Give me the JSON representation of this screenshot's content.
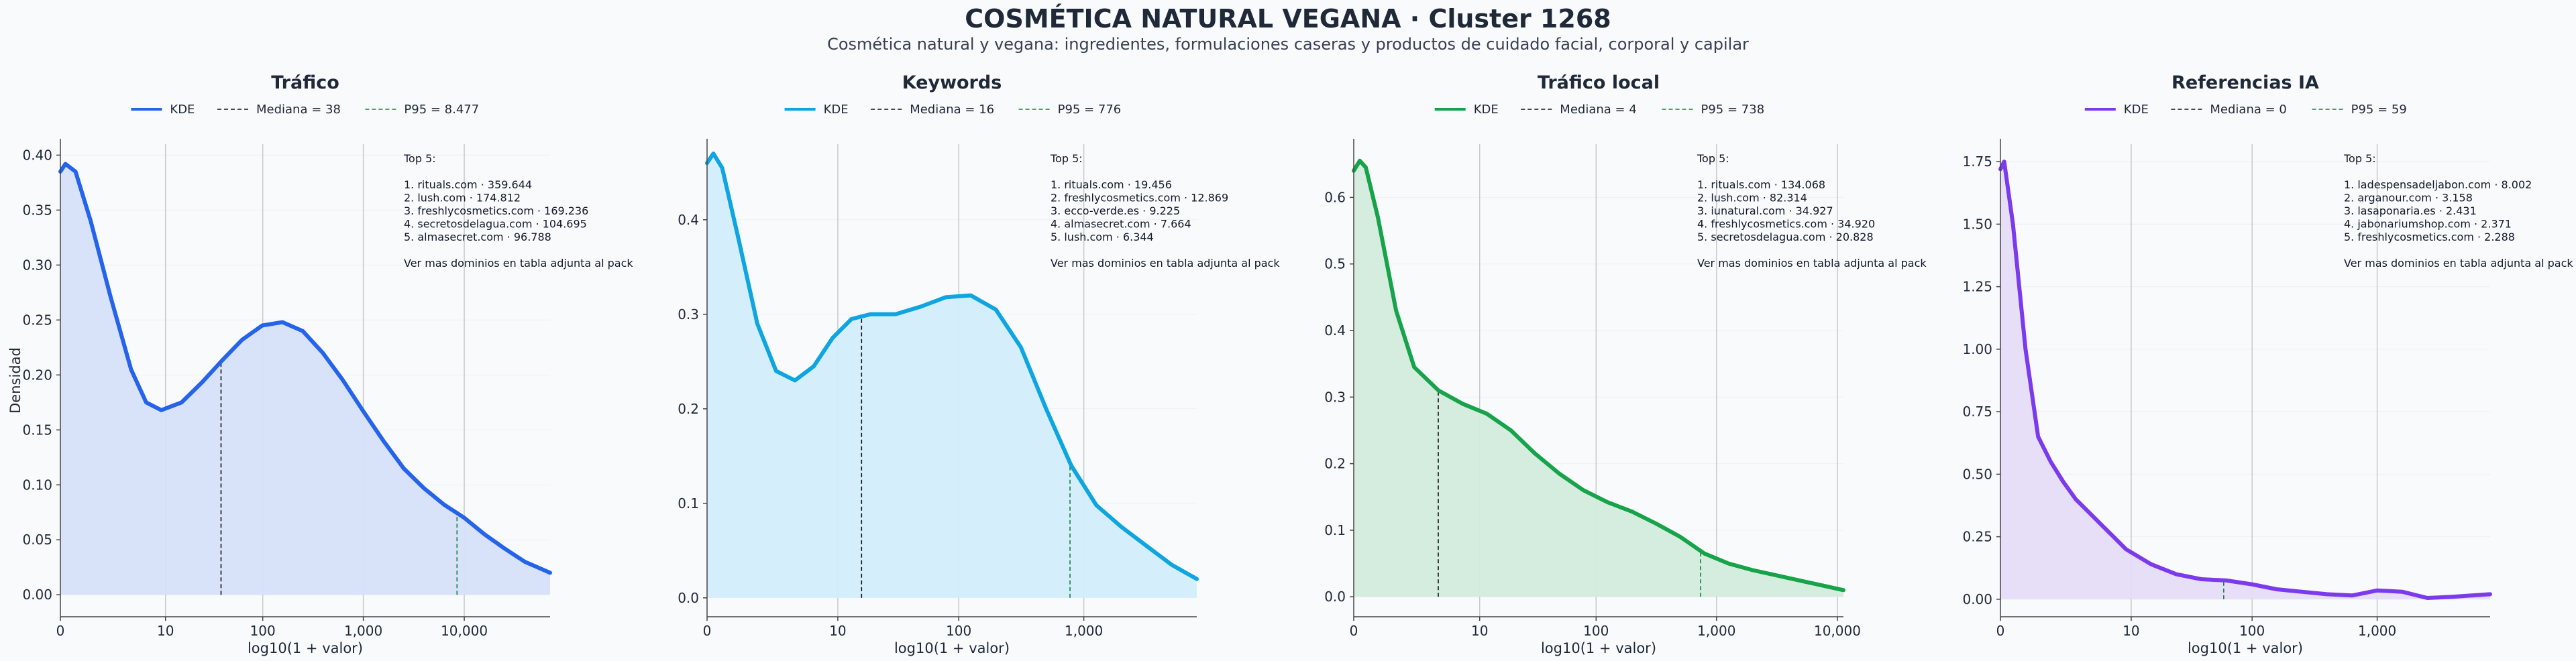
{
  "title": "COSMÉTICA NATURAL VEGANA · Cluster 1268",
  "subtitle": "Cosmética natural y vegana: ingredientes, formulaciones caseras y productos de cuidado facial, corporal y capilar",
  "chart_data": [
    {
      "type": "area",
      "title": "Tráfico",
      "xlabel": "log10(1 + valor)",
      "ylabel": "Densidad",
      "xscale": "log10(1+x)",
      "xlim": [
        0,
        4.85
      ],
      "ylim": [
        -0.02,
        0.41
      ],
      "color": "#2563eb",
      "fill": "#d6e0f8",
      "xticks": [
        "0",
        "10",
        "100",
        "1,000",
        "10,000"
      ],
      "yticks": [
        "0.00",
        "0.05",
        "0.10",
        "0.15",
        "0.20",
        "0.25",
        "0.30",
        "0.35",
        "0.40"
      ],
      "legend": {
        "kde": "KDE",
        "median": "Mediana = 38",
        "p95": "P95 = 8.477"
      },
      "median": 38,
      "p95": 8477,
      "series": [
        {
          "name": "KDE",
          "x": [
            0,
            0.05,
            0.15,
            0.3,
            0.5,
            0.7,
            0.85,
            1.0,
            1.2,
            1.4,
            1.6,
            1.8,
            2.0,
            2.2,
            2.4,
            2.6,
            2.8,
            3.0,
            3.2,
            3.4,
            3.6,
            3.8,
            4.0,
            4.2,
            4.4,
            4.6,
            4.85
          ],
          "y": [
            0.385,
            0.392,
            0.385,
            0.34,
            0.27,
            0.205,
            0.175,
            0.168,
            0.175,
            0.193,
            0.213,
            0.232,
            0.245,
            0.248,
            0.24,
            0.22,
            0.195,
            0.167,
            0.14,
            0.115,
            0.097,
            0.082,
            0.07,
            0.055,
            0.042,
            0.03,
            0.02
          ]
        }
      ],
      "annotation": [
        "Top 5:",
        "",
        "1. rituals.com · 359.644",
        "2. lush.com · 174.812",
        "3. freshlycosmetics.com · 169.236",
        "4. secretosdelagua.com · 104.695",
        "5. almasecret.com · 96.788",
        "",
        "Ver mas dominios en tabla adjunta al pack"
      ]
    },
    {
      "type": "area",
      "title": "Keywords",
      "xlabel": "log10(1 + valor)",
      "ylabel": "",
      "xscale": "log10(1+x)",
      "xlim": [
        0,
        3.9
      ],
      "ylim": [
        -0.02,
        0.48
      ],
      "color": "#0ea5e0",
      "fill": "#d2eefb",
      "xticks": [
        "0",
        "10",
        "100",
        "1,000"
      ],
      "yticks": [
        "0.0",
        "0.1",
        "0.2",
        "0.3",
        "0.4"
      ],
      "legend": {
        "kde": "KDE",
        "median": "Mediana = 16",
        "p95": "P95 = 776"
      },
      "median": 16,
      "p95": 776,
      "series": [
        {
          "name": "KDE",
          "x": [
            0,
            0.05,
            0.12,
            0.25,
            0.4,
            0.55,
            0.7,
            0.85,
            1.0,
            1.15,
            1.3,
            1.5,
            1.7,
            1.9,
            2.1,
            2.3,
            2.5,
            2.7,
            2.9,
            3.1,
            3.3,
            3.5,
            3.7,
            3.9
          ],
          "y": [
            0.46,
            0.47,
            0.455,
            0.38,
            0.29,
            0.24,
            0.23,
            0.245,
            0.275,
            0.295,
            0.3,
            0.3,
            0.308,
            0.318,
            0.32,
            0.305,
            0.265,
            0.2,
            0.14,
            0.098,
            0.075,
            0.055,
            0.035,
            0.02
          ]
        }
      ],
      "annotation": [
        "Top 5:",
        "",
        "1. rituals.com · 19.456",
        "2. freshlycosmetics.com · 12.869",
        "3. ecco-verde.es · 9.225",
        "4. almasecret.com · 7.664",
        "5. lush.com · 6.344",
        "",
        "Ver mas dominios en tabla adjunta al pack"
      ]
    },
    {
      "type": "area",
      "title": "Tráfico local",
      "xlabel": "log10(1 + valor)",
      "ylabel": "",
      "xscale": "log10(1+x)",
      "xlim": [
        0,
        4.05
      ],
      "ylim": [
        -0.03,
        0.68
      ],
      "color": "#16a34a",
      "fill": "#d3ecdc",
      "xticks": [
        "0",
        "10",
        "100",
        "1,000",
        "10,000"
      ],
      "yticks": [
        "0.0",
        "0.1",
        "0.2",
        "0.3",
        "0.4",
        "0.5",
        "0.6"
      ],
      "legend": {
        "kde": "KDE",
        "median": "Mediana = 4",
        "p95": "P95 = 738"
      },
      "median": 4,
      "p95": 738,
      "series": [
        {
          "name": "KDE",
          "x": [
            0,
            0.05,
            0.1,
            0.2,
            0.35,
            0.5,
            0.7,
            0.9,
            1.1,
            1.3,
            1.5,
            1.7,
            1.9,
            2.1,
            2.3,
            2.5,
            2.7,
            2.9,
            3.1,
            3.3,
            3.5,
            3.7,
            3.9,
            4.05
          ],
          "y": [
            0.64,
            0.655,
            0.645,
            0.57,
            0.43,
            0.345,
            0.31,
            0.29,
            0.275,
            0.25,
            0.215,
            0.185,
            0.16,
            0.142,
            0.128,
            0.11,
            0.09,
            0.065,
            0.05,
            0.04,
            0.032,
            0.024,
            0.016,
            0.01
          ]
        }
      ],
      "annotation": [
        "Top 5:",
        "",
        "1. rituals.com · 134.068",
        "2. lush.com · 82.314",
        "3. iunatural.com · 34.927",
        "4. freshlycosmetics.com · 34.920",
        "5. secretosdelagua.com · 20.828",
        "",
        "Ver mas dominios en tabla adjunta al pack"
      ]
    },
    {
      "type": "area",
      "title": "Referencias IA",
      "xlabel": "log10(1 + valor)",
      "ylabel": "",
      "xscale": "log10(1+x)",
      "xlim": [
        0,
        3.9
      ],
      "ylim": [
        -0.07,
        1.82
      ],
      "color": "#7c3aed",
      "fill": "#e6dcf8",
      "xticks": [
        "0",
        "10",
        "100",
        "1,000"
      ],
      "yticks": [
        "0.00",
        "0.25",
        "0.50",
        "0.75",
        "1.00",
        "1.25",
        "1.50",
        "1.75"
      ],
      "legend": {
        "kde": "KDE",
        "median": "Mediana = 0",
        "p95": "P95 = 59"
      },
      "median": 0,
      "p95": 59,
      "series": [
        {
          "name": "KDE",
          "x": [
            0,
            0.03,
            0.1,
            0.2,
            0.3,
            0.4,
            0.5,
            0.6,
            0.7,
            0.8,
            0.9,
            1.0,
            1.2,
            1.4,
            1.6,
            1.8,
            2.0,
            2.2,
            2.4,
            2.6,
            2.8,
            3.0,
            3.2,
            3.4,
            3.6,
            3.9
          ],
          "y": [
            1.72,
            1.75,
            1.5,
            1.0,
            0.65,
            0.55,
            0.47,
            0.4,
            0.35,
            0.3,
            0.25,
            0.2,
            0.14,
            0.1,
            0.08,
            0.075,
            0.06,
            0.04,
            0.03,
            0.02,
            0.015,
            0.035,
            0.03,
            0.005,
            0.01,
            0.02
          ]
        }
      ],
      "annotation": [
        "Top 5:",
        "",
        "1. ladespensadeljabon.com · 8.002",
        "2. arganour.com · 3.158",
        "3. lasaponaria.es · 2.431",
        "4. jabonariumshop.com · 2.371",
        "5. freshlycosmetics.com · 2.288",
        "",
        "Ver mas dominios en tabla adjunta al pack"
      ]
    }
  ]
}
